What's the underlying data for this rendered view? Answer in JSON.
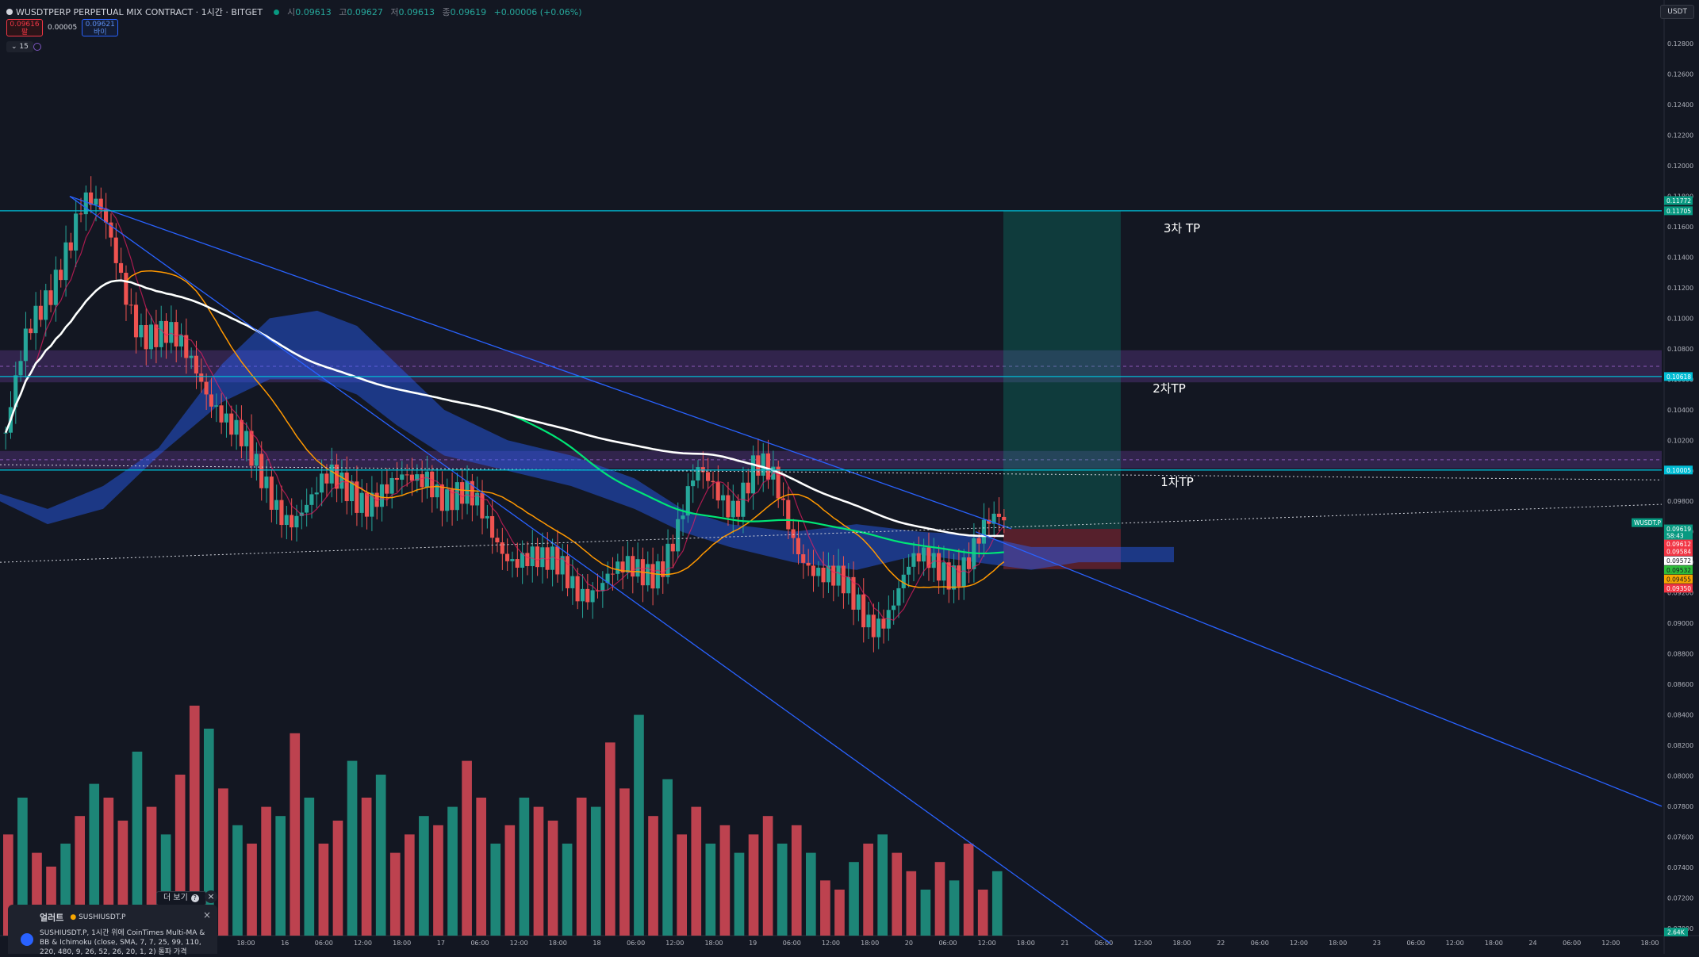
{
  "header": {
    "title": "WUSDTPERP PERPETUAL MIX CONTRACT · 1시간 · BITGET",
    "ohlc": [
      {
        "label": "시",
        "value": "0.09613"
      },
      {
        "label": "고",
        "value": "0.09627"
      },
      {
        "label": "저",
        "value": "0.09613"
      },
      {
        "label": "종",
        "value": "0.09619"
      }
    ],
    "change": "+0.00006 (+0.06%)",
    "sell_price": "0.09616",
    "sell_label": "팔",
    "spread": "0.00005",
    "buy_price": "0.09621",
    "buy_label": "바이",
    "indicator_toggle": "⌄ 15",
    "currency": "USDT"
  },
  "chart_data": {
    "type": "candlestick",
    "ylim": [
      0.069,
      0.129
    ],
    "y_ticks": [
      "0.12800",
      "0.12600",
      "0.12400",
      "0.12200",
      "0.12000",
      "0.11800",
      "0.11600",
      "0.11400",
      "0.11200",
      "0.11000",
      "0.10800",
      "0.10600",
      "0.10400",
      "0.10200",
      "0.10000",
      "0.09800",
      "0.09600",
      "0.09400",
      "0.09200",
      "0.09000",
      "0.08800",
      "0.08600",
      "0.08400",
      "0.08200",
      "0.08000",
      "0.07800",
      "0.07600",
      "0.07400",
      "0.07200",
      "0.07000"
    ],
    "x_ticks": [
      "18:00",
      "16",
      "06:00",
      "12:00",
      "18:00",
      "17",
      "06:00",
      "12:00",
      "18:00",
      "18",
      "06:00",
      "12:00",
      "18:00",
      "19",
      "06:00",
      "12:00",
      "18:00",
      "20",
      "06:00",
      "12:00",
      "18:00",
      "21",
      "06:00",
      "12:00",
      "18:00",
      "22",
      "06:00",
      "12:00",
      "18:00",
      "23",
      "06:00",
      "12:00",
      "18:00",
      "24",
      "06:00",
      "12:00",
      "18:00"
    ],
    "price_path": [
      0.1025,
      0.1075,
      0.111,
      0.115,
      0.1175,
      0.116,
      0.113,
      0.11,
      0.1085,
      0.1075,
      0.107,
      0.105,
      0.102,
      0.0995,
      0.0985,
      0.0975,
      0.0975,
      0.099,
      0.0995,
      0.0985,
      0.098,
      0.099,
      0.1005,
      0.0985,
      0.0975,
      0.0965,
      0.0955,
      0.0945,
      0.093,
      0.0935,
      0.093,
      0.0925,
      0.0925,
      0.0935,
      0.0945,
      0.096,
      0.099,
      0.099,
      0.0985,
      0.1,
      0.0985,
      0.096,
      0.0945,
      0.0925,
      0.091,
      0.0905,
      0.0915,
      0.093,
      0.0935,
      0.094,
      0.0945,
      0.0955,
      0.0962
    ],
    "horizontal_levels": [
      {
        "price": 0.11705,
        "label": "3차 TP"
      },
      {
        "price": 0.10618,
        "label": "2차TP"
      },
      {
        "price": 0.10005,
        "label": "1차TP"
      }
    ],
    "zones": [
      {
        "name": "purple-zone",
        "from": 0.1058,
        "to": 0.1079
      },
      {
        "name": "upper-zone",
        "from": 0.10015,
        "to": 0.1013
      }
    ],
    "position": {
      "entry": 0.09619,
      "target": 0.11705,
      "stop": 0.09355
    },
    "price_labels": [
      {
        "text": "0.11772",
        "price": 0.11772,
        "color": "#089981"
      },
      {
        "text": "0.11705",
        "price": 0.11705,
        "color": "#089981"
      },
      {
        "text": "0.10618",
        "price": 0.10618,
        "color": "#00bcd4"
      },
      {
        "text": "0.10005",
        "price": 0.10005,
        "color": "#00bcd4"
      },
      {
        "text": "0.09619",
        "price": 0.09619,
        "color": "#089981"
      },
      {
        "text": "58:43",
        "price": 0.09575,
        "color": "#089981"
      },
      {
        "text": "0.09612",
        "price": 0.0952,
        "color": "#f23645"
      },
      {
        "text": "0.09584",
        "price": 0.0947,
        "color": "#f23645"
      },
      {
        "text": "0.09572",
        "price": 0.0941,
        "color": "#ffffff"
      },
      {
        "text": "0.09532",
        "price": 0.0935,
        "color": "#2ebd3a"
      },
      {
        "text": "0.09455",
        "price": 0.0929,
        "color": "#f7a600"
      },
      {
        "text": "0.09350",
        "price": 0.0923,
        "color": "#f23645"
      }
    ],
    "symbol_tag": "WUSDT.P",
    "volume_label": "2.64K",
    "volume": [
      22,
      30,
      18,
      15,
      20,
      26,
      33,
      30,
      25,
      40,
      28,
      22,
      35,
      50,
      45,
      32,
      24,
      20,
      28,
      26,
      44,
      30,
      20,
      25,
      38,
      30,
      35,
      18,
      22,
      26,
      24,
      28,
      38,
      30,
      20,
      24,
      30,
      28,
      25,
      20,
      30,
      28,
      42,
      32,
      48,
      26,
      34,
      22,
      28,
      20,
      24,
      18,
      22,
      26,
      20,
      24,
      18,
      12,
      10,
      16,
      20,
      22,
      18,
      14,
      10,
      16,
      12,
      20,
      10,
      14
    ]
  },
  "alert": {
    "title": "얼러트",
    "symbol": "SUSHIUSDT.P",
    "message": "SUSHIUSDT.P, 1시간 위에 CoinTimes Multi-MA & BB & Ichimoku (close, SMA, 7, 7, 25, 99, 110, 220, 480, 9, 26, 52, 26, 20, 1, 2) 돌파 가격",
    "more_label": "더 보기",
    "close_label": "×"
  }
}
